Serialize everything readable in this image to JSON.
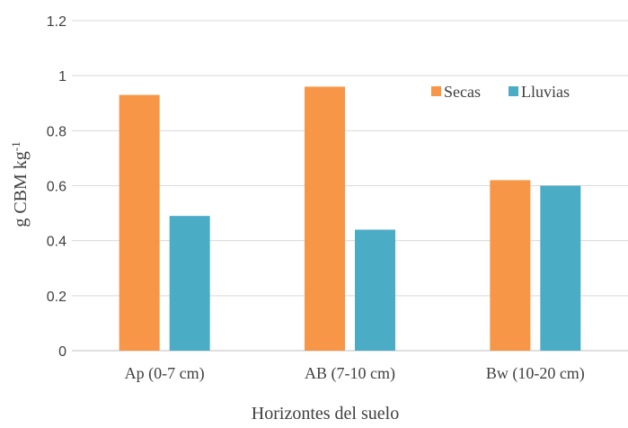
{
  "chart_data": {
    "type": "bar",
    "title": "",
    "xlabel": "Horizontes del suelo",
    "ylabel_main": "g CBM kg",
    "ylabel_sup": "-1",
    "categories": [
      "Ap (0-7 cm)",
      "AB (7-10 cm)",
      "Bw (10-20 cm)"
    ],
    "series": [
      {
        "name": "Secas",
        "color": "#F79646",
        "values": [
          0.93,
          0.96,
          0.62
        ]
      },
      {
        "name": "Lluvias",
        "color": "#4BACC6",
        "values": [
          0.49,
          0.44,
          0.6
        ]
      }
    ],
    "ylim": [
      0,
      1.2
    ],
    "yticks": [
      "0",
      "0.2",
      "0.4",
      "0.6",
      "0.8",
      "1",
      "1.2"
    ],
    "grid": true,
    "legend_position": "top-right"
  }
}
